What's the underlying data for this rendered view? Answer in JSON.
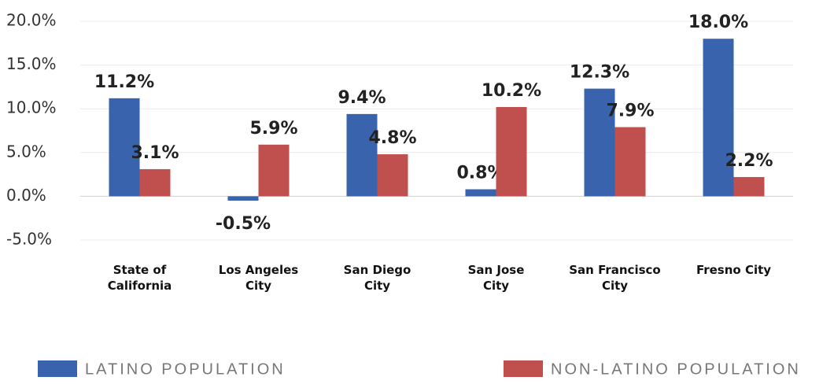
{
  "chart_data": {
    "type": "bar",
    "categories": [
      "State of\nCalifornia",
      "Los Angeles\nCity",
      "San Diego\nCity",
      "San Jose\nCity",
      "San Francisco\nCity",
      "Fresno City"
    ],
    "series": [
      {
        "name": "LATINO POPULATION",
        "color": "#3a63ad",
        "values": [
          11.2,
          -0.5,
          9.4,
          0.8,
          12.3,
          18.0
        ],
        "value_labels": [
          "11.2%",
          "-0.5%",
          "9.4%",
          "0.8%",
          "12.3%",
          "18.0%"
        ]
      },
      {
        "name": "NON-LATINO POPULATION",
        "color": "#c0504d",
        "values": [
          3.1,
          5.9,
          4.8,
          10.2,
          7.9,
          2.2
        ],
        "value_labels": [
          "3.1%",
          "5.9%",
          "4.8%",
          "10.2%",
          "7.9%",
          "2.2%"
        ]
      }
    ],
    "ylim": [
      -5,
      20
    ],
    "yticks": [
      {
        "value": -5,
        "label": "-5.0%"
      },
      {
        "value": 0,
        "label": "0.0%"
      },
      {
        "value": 5,
        "label": "5.0%"
      },
      {
        "value": 10,
        "label": "10.0%"
      },
      {
        "value": 15,
        "label": "15.0%"
      },
      {
        "value": 20,
        "label": "20.0%"
      }
    ],
    "grid": true
  }
}
